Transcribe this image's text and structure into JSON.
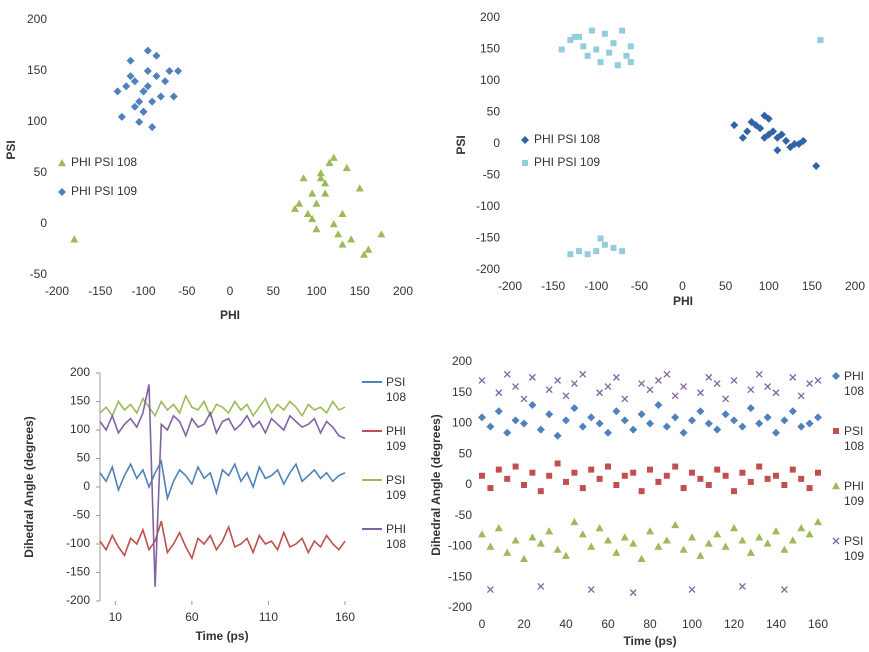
{
  "chart_data": [
    {
      "type": "scatter",
      "xlabel": "PHI",
      "ylabel": "PSI",
      "xlim": [
        -200,
        200
      ],
      "ylim": [
        -50,
        200
      ],
      "xticks": [
        -200,
        -150,
        -100,
        -50,
        0,
        50,
        100,
        150,
        200
      ],
      "yticks": [
        -50,
        0,
        50,
        100,
        150,
        200
      ],
      "legend": "inside-left",
      "series": [
        {
          "name": "PHI PSI 108",
          "color": "#9bbb59",
          "marker": "triangle",
          "x": [
            100,
            110,
            90,
            120,
            105,
            95,
            130,
            80,
            115,
            125,
            100,
            140,
            135,
            85,
            110,
            160,
            150,
            175,
            -180,
            120,
            75,
            95,
            130,
            155,
            105
          ],
          "y": [
            20,
            40,
            10,
            0,
            50,
            30,
            10,
            20,
            60,
            -10,
            -5,
            -15,
            55,
            45,
            30,
            -25,
            35,
            -10,
            -15,
            65,
            15,
            5,
            -20,
            -30,
            45
          ]
        },
        {
          "name": "PHI PSI 109",
          "color": "#4f81bd",
          "marker": "diamond",
          "x": [
            -100,
            -110,
            -90,
            -95,
            -120,
            -80,
            -105,
            -115,
            -85,
            -100,
            -130,
            -70,
            -95,
            -110,
            -90,
            -60,
            -125,
            -100,
            -85,
            -105,
            -75,
            -115,
            -95,
            -65,
            -100
          ],
          "y": [
            130,
            140,
            120,
            150,
            135,
            125,
            100,
            160,
            145,
            110,
            130,
            150,
            170,
            115,
            95,
            150,
            105,
            130,
            165,
            120,
            140,
            145,
            135,
            125,
            110
          ]
        }
      ]
    },
    {
      "type": "scatter",
      "xlabel": "PHI",
      "ylabel": "PSI",
      "xlim": [
        -200,
        200
      ],
      "ylim": [
        -200,
        200
      ],
      "xticks": [
        -200,
        -150,
        -100,
        -50,
        0,
        50,
        100,
        150,
        200
      ],
      "yticks": [
        -200,
        -150,
        -100,
        -50,
        0,
        50,
        100,
        150,
        200
      ],
      "legend": "inside-left",
      "series": [
        {
          "name": "PHI PSI 108",
          "color": "#2f64a8",
          "marker": "diamond",
          "x": [
            100,
            110,
            90,
            120,
            85,
            105,
            130,
            75,
            95,
            115,
            140,
            60,
            100,
            125,
            80,
            110,
            155,
            95,
            70,
            135
          ],
          "y": [
            15,
            10,
            25,
            5,
            30,
            20,
            0,
            20,
            10,
            15,
            5,
            30,
            40,
            -5,
            35,
            -10,
            -35,
            45,
            10,
            0
          ]
        },
        {
          "name": "PHI PSI 109",
          "color": "#93cddd",
          "marker": "square",
          "x": [
            -100,
            -120,
            -80,
            -90,
            -110,
            -130,
            -70,
            -60,
            -140,
            -95,
            -75,
            -105,
            -115,
            -85,
            -125,
            -65,
            -100,
            -90,
            -110,
            -80,
            -130,
            -95,
            -120,
            160,
            -60,
            -70
          ],
          "y": [
            150,
            170,
            160,
            175,
            140,
            165,
            180,
            155,
            150,
            130,
            125,
            180,
            155,
            145,
            170,
            140,
            -170,
            -160,
            -175,
            -165,
            -175,
            -150,
            -170,
            165,
            130,
            -170
          ]
        }
      ]
    },
    {
      "type": "line",
      "xlabel": "Time (ps)",
      "ylabel": "Dihedral Angle (degrees)",
      "xlim": [
        0,
        160
      ],
      "ylim": [
        -200,
        200
      ],
      "xticks": [
        10,
        60,
        110,
        160
      ],
      "yticks": [
        -200,
        -150,
        -100,
        -50,
        0,
        50,
        100,
        150,
        200
      ],
      "legend": "right",
      "x": [
        0,
        4,
        8,
        12,
        16,
        20,
        24,
        28,
        32,
        36,
        40,
        44,
        48,
        52,
        56,
        60,
        64,
        68,
        72,
        76,
        80,
        84,
        88,
        92,
        96,
        100,
        104,
        108,
        112,
        116,
        120,
        124,
        128,
        132,
        136,
        140,
        144,
        148,
        152,
        156,
        160
      ],
      "series": [
        {
          "name": "PSI 108",
          "color": "#4f81bd",
          "values": [
            25,
            10,
            35,
            -5,
            20,
            40,
            15,
            30,
            0,
            25,
            45,
            -20,
            10,
            30,
            20,
            5,
            35,
            15,
            25,
            -10,
            30,
            20,
            40,
            10,
            25,
            0,
            35,
            15,
            20,
            30,
            5,
            25,
            40,
            10,
            20,
            30,
            15,
            25,
            10,
            20,
            25
          ]
        },
        {
          "name": "PHI 109",
          "color": "#c0504d",
          "values": [
            -95,
            -110,
            -85,
            -105,
            -120,
            -90,
            -100,
            -75,
            -110,
            -95,
            -60,
            -115,
            -100,
            -80,
            -105,
            -125,
            -90,
            -100,
            -85,
            -110,
            -95,
            -70,
            -105,
            -100,
            -90,
            -115,
            -85,
            -100,
            -95,
            -110,
            -80,
            -105,
            -100,
            -90,
            -115,
            -95,
            -105,
            -85,
            -100,
            -110,
            -95
          ]
        },
        {
          "name": "PSI 109",
          "color": "#9bbb59",
          "values": [
            130,
            140,
            125,
            150,
            135,
            145,
            130,
            155,
            140,
            125,
            150,
            135,
            145,
            130,
            160,
            140,
            135,
            150,
            125,
            145,
            140,
            130,
            150,
            135,
            145,
            125,
            140,
            155,
            130,
            145,
            135,
            150,
            140,
            125,
            145,
            135,
            140,
            130,
            150,
            135,
            140
          ]
        },
        {
          "name": "PHI 108",
          "color": "#8064a2",
          "values": [
            115,
            100,
            125,
            95,
            110,
            120,
            105,
            130,
            180,
            -175,
            110,
            100,
            125,
            115,
            90,
            120,
            105,
            110,
            130,
            95,
            115,
            120,
            100,
            110,
            125,
            105,
            115,
            95,
            120,
            110,
            100,
            125,
            115,
            105,
            110,
            120,
            95,
            115,
            105,
            90,
            85
          ]
        }
      ]
    },
    {
      "type": "scatter",
      "xlabel": "Time (ps)",
      "ylabel": "Dihedral Angle (degrees)",
      "xlim": [
        0,
        160
      ],
      "ylim": [
        -200,
        200
      ],
      "xticks": [
        0,
        20,
        40,
        60,
        80,
        100,
        120,
        140,
        160
      ],
      "yticks": [
        -200,
        -150,
        -100,
        -50,
        0,
        50,
        100,
        150,
        200
      ],
      "legend": "right",
      "x": [
        0,
        4,
        8,
        12,
        16,
        20,
        24,
        28,
        32,
        36,
        40,
        44,
        48,
        52,
        56,
        60,
        64,
        68,
        72,
        76,
        80,
        84,
        88,
        92,
        96,
        100,
        104,
        108,
        112,
        116,
        120,
        124,
        128,
        132,
        136,
        140,
        144,
        148,
        152,
        156,
        160
      ],
      "series": [
        {
          "name": "PHI 108",
          "color": "#4f81bd",
          "marker": "diamond",
          "values": [
            110,
            95,
            120,
            85,
            105,
            100,
            130,
            90,
            115,
            80,
            105,
            125,
            95,
            110,
            100,
            85,
            120,
            105,
            90,
            115,
            100,
            130,
            95,
            110,
            85,
            105,
            120,
            100,
            90,
            115,
            105,
            95,
            125,
            100,
            110,
            85,
            105,
            120,
            95,
            100,
            110
          ]
        },
        {
          "name": "PSI 108",
          "color": "#c0504d",
          "marker": "square",
          "values": [
            15,
            -5,
            25,
            10,
            30,
            0,
            20,
            -10,
            15,
            35,
            5,
            20,
            -5,
            25,
            10,
            30,
            0,
            15,
            20,
            -10,
            25,
            5,
            15,
            30,
            -5,
            20,
            10,
            0,
            25,
            15,
            -10,
            20,
            5,
            30,
            10,
            15,
            0,
            25,
            10,
            -5,
            20
          ]
        },
        {
          "name": "PHI 109",
          "color": "#9bbb59",
          "marker": "triangle",
          "values": [
            -80,
            -100,
            -70,
            -110,
            -90,
            -120,
            -85,
            -95,
            -75,
            -105,
            -115,
            -60,
            -80,
            -100,
            -70,
            -90,
            -110,
            -85,
            -95,
            -120,
            -75,
            -100,
            -90,
            -65,
            -105,
            -85,
            -115,
            -95,
            -80,
            -100,
            -70,
            -90,
            -110,
            -85,
            -95,
            -75,
            -105,
            -90,
            -70,
            -80,
            -60
          ]
        },
        {
          "name": "PSI 109",
          "color": "#8064a2",
          "marker": "x",
          "values": [
            170,
            -170,
            150,
            180,
            160,
            140,
            175,
            -165,
            155,
            170,
            145,
            165,
            180,
            -170,
            150,
            160,
            175,
            140,
            -175,
            165,
            155,
            170,
            180,
            145,
            160,
            -170,
            150,
            175,
            165,
            140,
            170,
            -165,
            155,
            180,
            160,
            150,
            -170,
            175,
            145,
            165,
            170
          ]
        }
      ]
    }
  ]
}
